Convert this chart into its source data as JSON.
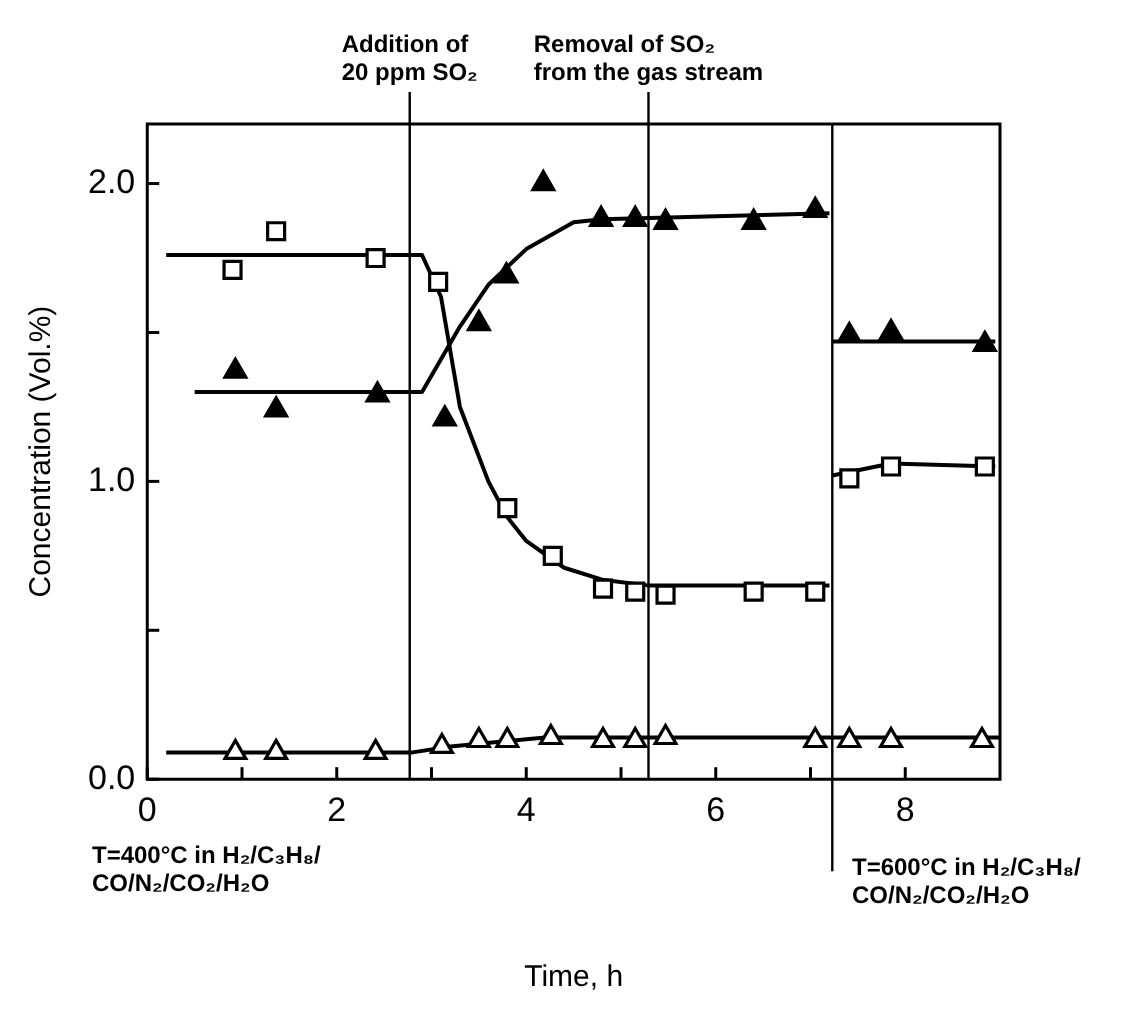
{
  "chart_data": {
    "type": "scatter",
    "xlabel": "Time, h",
    "ylabel": "Concentration (Vol.%)",
    "xlim": [
      0,
      9
    ],
    "ylim": [
      0,
      2.2
    ],
    "xticks": [
      0,
      {
        "value": 1,
        "label": null
      },
      2,
      {
        "value": 3,
        "label": null
      },
      4,
      {
        "value": 5,
        "label": null
      },
      6,
      {
        "value": 7,
        "label": null
      },
      8
    ],
    "yticks": [
      {
        "value": 0,
        "label": "0.0"
      },
      {
        "value": 0.5,
        "label": null
      },
      {
        "value": 1,
        "label": "1.0"
      },
      {
        "value": 1.5,
        "label": null
      },
      {
        "value": 2,
        "label": "2.0"
      }
    ],
    "series": [
      {
        "marker": "square",
        "color": "#ffffff",
        "x": [
          0.9,
          1.36,
          2.41,
          3.07,
          3.8,
          4.28,
          4.81,
          5.15,
          5.47,
          6.4,
          7.05,
          7.41,
          7.85,
          8.84
        ],
        "values": [
          1.71,
          1.84,
          1.75,
          1.67,
          0.91,
          0.75,
          0.64,
          0.63,
          0.62,
          0.63,
          0.63,
          1.01,
          1.05,
          1.05
        ]
      },
      {
        "marker": "triangle",
        "color": "#000000",
        "x": [
          0.93,
          1.36,
          2.43,
          3.14,
          3.5,
          3.79,
          4.18,
          4.79,
          5.15,
          5.47,
          6.4,
          7.05,
          7.41,
          7.85,
          8.84
        ],
        "values": [
          1.37,
          1.24,
          1.29,
          1.21,
          1.53,
          1.69,
          2.0,
          1.88,
          1.88,
          1.87,
          1.87,
          1.91,
          1.49,
          1.5,
          1.46
        ]
      },
      {
        "marker": "triangle",
        "color": "#ffffff",
        "x": [
          0.93,
          1.36,
          2.41,
          3.11,
          3.5,
          3.8,
          4.26,
          4.81,
          5.15,
          5.47,
          7.05,
          7.41,
          7.85,
          8.81
        ],
        "values": [
          0.09,
          0.09,
          0.09,
          0.11,
          0.13,
          0.13,
          0.14,
          0.13,
          0.13,
          0.14,
          0.13,
          0.13,
          0.13,
          0.13
        ]
      },
      {
        "type": "line",
        "marker": "none",
        "color": "#000000",
        "x": [
          0.2,
          2.9,
          3.1,
          3.3,
          3.6,
          3.8,
          4.0,
          4.4,
          4.8,
          5.3,
          7.2,
          7.22,
          7.23,
          7.85,
          8.95
        ],
        "values": [
          1.76,
          1.76,
          1.62,
          1.25,
          1.0,
          0.88,
          0.8,
          0.71,
          0.67,
          0.65,
          0.65,
          null,
          1.02,
          1.06,
          1.05
        ]
      },
      {
        "type": "line",
        "marker": "none",
        "color": "#000000",
        "x": [
          0.5,
          2.9,
          3.3,
          3.6,
          4.0,
          4.5,
          4.8,
          7.2,
          7.22,
          7.23,
          8.95
        ],
        "values": [
          1.3,
          1.3,
          1.52,
          1.66,
          1.78,
          1.87,
          1.88,
          1.9,
          null,
          1.47,
          1.47
        ]
      },
      {
        "type": "line",
        "marker": "none",
        "color": "#000000",
        "x": [
          0.2,
          2.8,
          3.2,
          4.2,
          9.0
        ],
        "values": [
          0.09,
          0.09,
          0.11,
          0.14,
          0.14
        ]
      }
    ],
    "ref_lines": [
      {
        "axis": "x",
        "value": 2.77,
        "label": "Addition of 20 ppm SO₂"
      },
      {
        "axis": "x",
        "value": 5.29,
        "label": "Removal of SO₂ from the gas stream"
      },
      {
        "axis": "x",
        "value": 7.23
      }
    ],
    "annotations": [
      "T=400°C in H₂/C₃H₈/ CO/N₂/CO₂/H₂O",
      "T=600°C in H₂/C₃H₈/ CO/N₂/CO₂/H₂O"
    ]
  }
}
